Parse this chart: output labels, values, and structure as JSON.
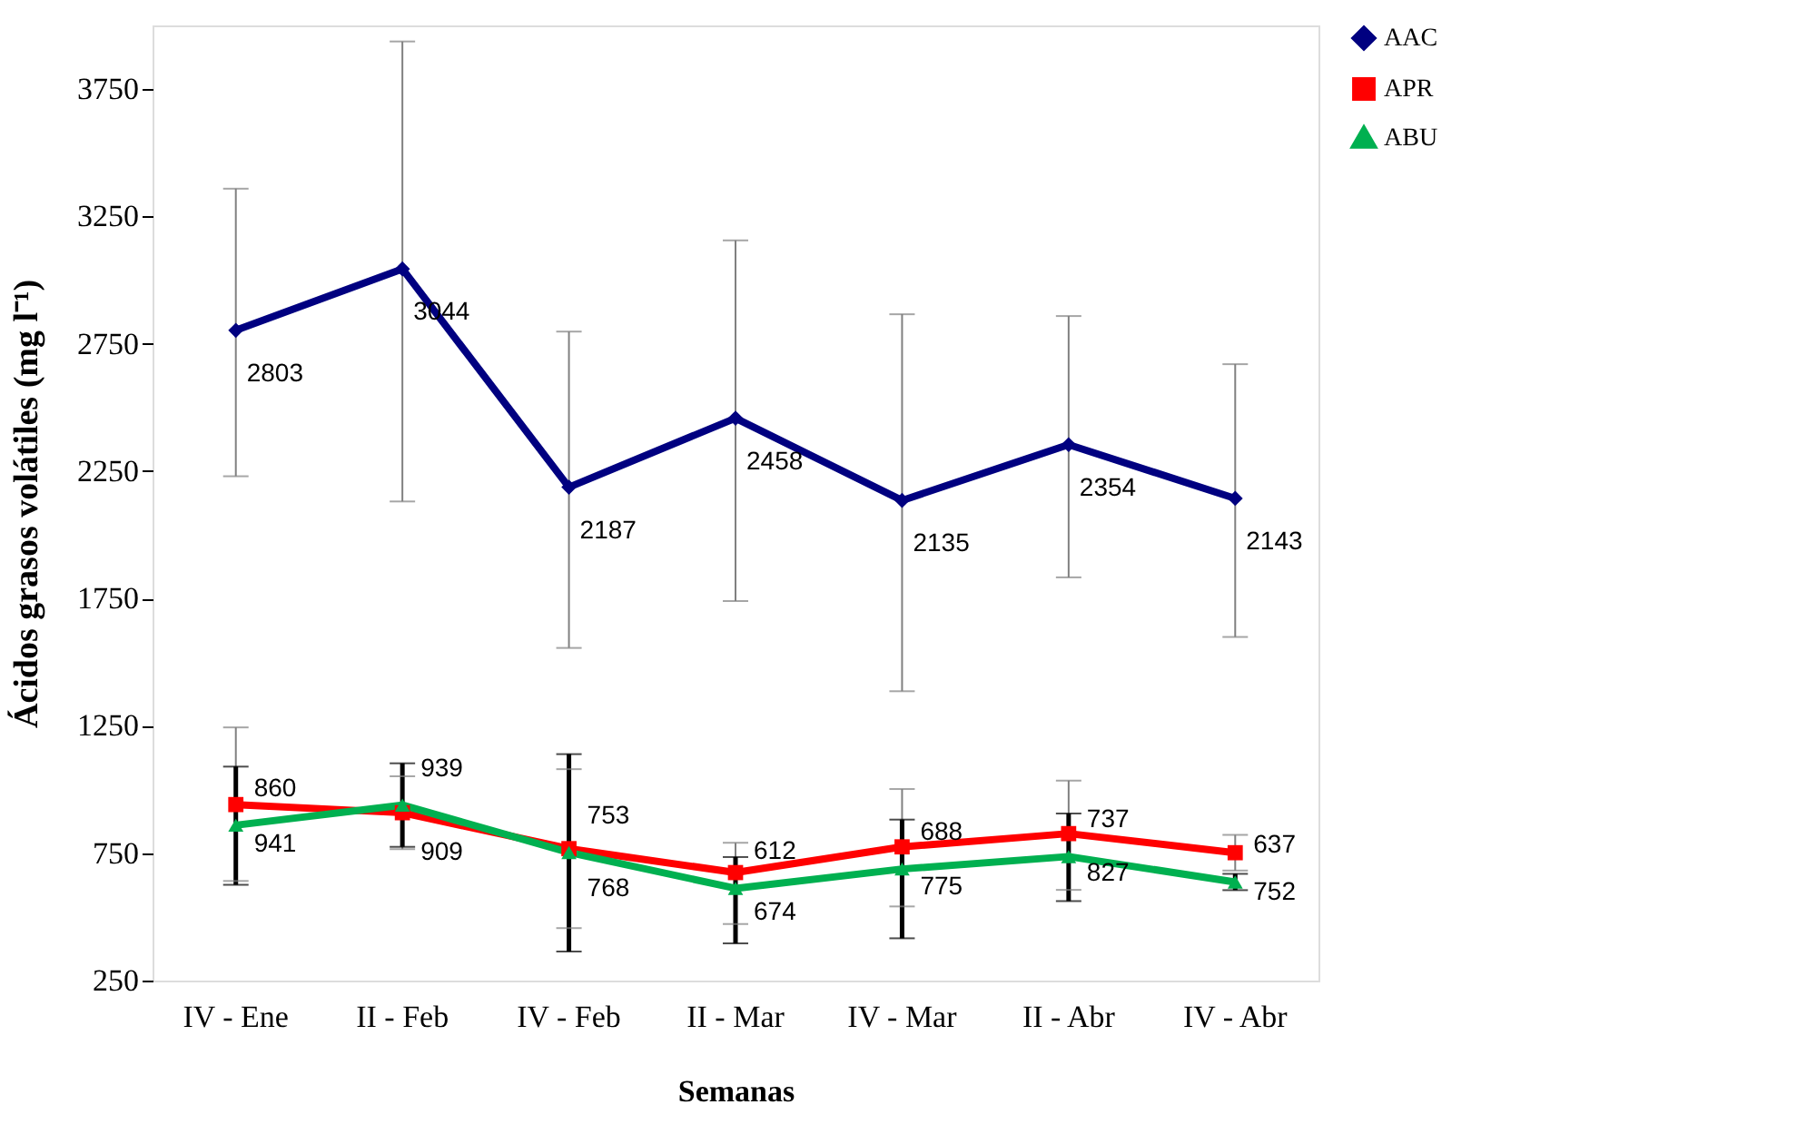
{
  "chart_data": {
    "type": "line",
    "xlabel": "Semanas",
    "ylabel": "Ácidos grasos volátiles (mg l⁻¹)",
    "categories": [
      "IV - Ene",
      "II - Feb",
      "IV - Feb",
      "II - Mar",
      "IV - Mar",
      "II - Abr",
      "IV - Abr"
    ],
    "series": [
      {
        "name": "AAC",
        "color": "#000080",
        "marker": "diamond",
        "values": [
          2803,
          3044,
          2187,
          2458,
          2135,
          2354,
          2143
        ],
        "errors": [
          [
            2230,
            3359
          ],
          [
            2131,
            3937
          ],
          [
            1556,
            2798
          ],
          [
            1740,
            3156
          ],
          [
            1386,
            2866
          ],
          [
            1833,
            2859
          ],
          [
            1599,
            2670
          ]
        ]
      },
      {
        "name": "APR",
        "color": "#ff0000",
        "marker": "square",
        "values": [
          941,
          909,
          768,
          674,
          775,
          827,
          752
        ],
        "errors": [
          [
            641,
            1244
          ],
          [
            766,
            1052
          ],
          [
            456,
            1080
          ],
          [
            472,
            791
          ],
          [
            541,
            1002
          ],
          [
            606,
            1035
          ],
          [
            682,
            822
          ]
        ]
      },
      {
        "name": "ABU",
        "color": "#00b050",
        "marker": "triangle",
        "values": [
          860,
          939,
          753,
          612,
          688,
          737,
          637
        ],
        "errors": [
          [
            626,
            1090
          ],
          [
            775,
            1103
          ],
          [
            364,
            1139
          ],
          [
            396,
            735
          ],
          [
            416,
            882
          ],
          [
            562,
            906
          ],
          [
            605,
            669
          ]
        ]
      }
    ],
    "ylim": [
      250,
      4000
    ],
    "yticks": [
      250,
      750,
      1250,
      1750,
      2250,
      2750,
      3250,
      3750
    ],
    "data_labels": true,
    "grid": false,
    "legend": "right"
  }
}
